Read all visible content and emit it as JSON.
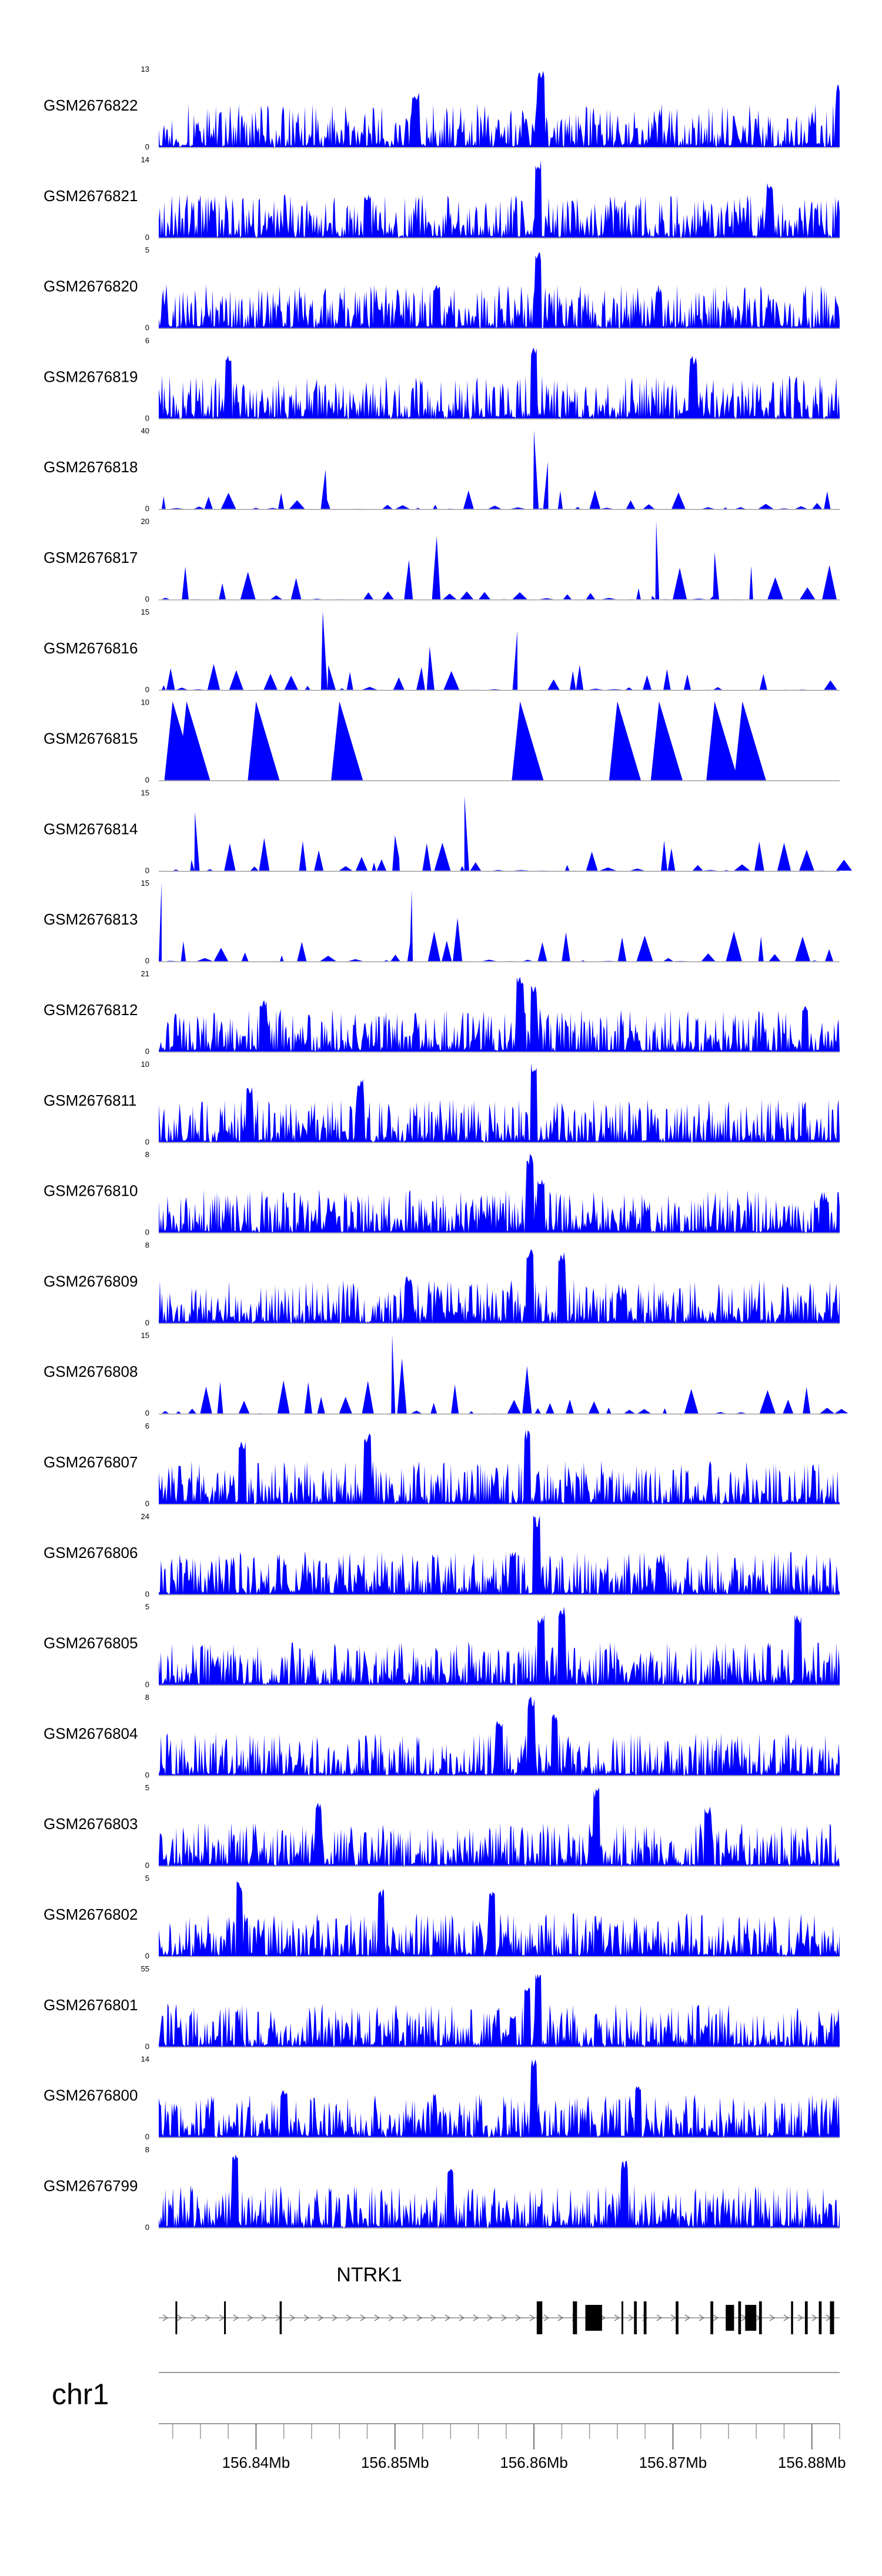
{
  "chart_data": {
    "type": "area",
    "chromosome": "chr1",
    "region": {
      "start": 156833000,
      "end": 156882000
    },
    "track_color": "#0000ff",
    "tracks": [
      {
        "name": "GSM2676822",
        "max": 13,
        "min": 0,
        "peaks": [
          [
            156851500,
            0.7
          ],
          [
            156860500,
            1.0
          ],
          [
            156882000,
            0.8
          ]
        ]
      },
      {
        "name": "GSM2676821",
        "max": 14,
        "min": 0,
        "peaks": [
          [
            156860300,
            1.0
          ],
          [
            156877000,
            0.7
          ],
          [
            156848000,
            0.55
          ]
        ]
      },
      {
        "name": "GSM2676820",
        "max": 5,
        "min": 0,
        "peaks": [
          [
            156860300,
            1.0
          ],
          [
            156853000,
            0.55
          ],
          [
            156869000,
            0.5
          ]
        ]
      },
      {
        "name": "GSM2676819",
        "max": 6,
        "min": 0,
        "peaks": [
          [
            156860000,
            0.9
          ],
          [
            156838000,
            0.8
          ],
          [
            156871500,
            0.8
          ]
        ]
      },
      {
        "name": "GSM2676818",
        "max": 40,
        "min": 0,
        "peaks": [
          [
            156860000,
            1.0
          ],
          [
            156845000,
            0.5
          ],
          [
            156861000,
            0.6
          ]
        ]
      },
      {
        "name": "GSM2676817",
        "max": 20,
        "min": 0,
        "peaks": [
          [
            156868800,
            1.0
          ],
          [
            156853000,
            0.8
          ],
          [
            156851000,
            0.5
          ],
          [
            156873000,
            0.6
          ]
        ]
      },
      {
        "name": "GSM2676816",
        "max": 15,
        "min": 0,
        "peaks": [
          [
            156844800,
            1.0
          ],
          [
            156858800,
            0.75
          ],
          [
            156852500,
            0.55
          ]
        ]
      },
      {
        "name": "GSM2676815",
        "max": 10,
        "min": 0,
        "peaks": [
          [
            156834000,
            1.0
          ],
          [
            156835000,
            1.0
          ],
          [
            156840000,
            1.0
          ],
          [
            156846000,
            1.0
          ],
          [
            156859000,
            1.0
          ],
          [
            156866000,
            1.0
          ],
          [
            156869000,
            1.0
          ],
          [
            156873000,
            1.0
          ],
          [
            156875000,
            1.0
          ]
        ]
      },
      {
        "name": "GSM2676814",
        "max": 15,
        "min": 0,
        "peaks": [
          [
            156835600,
            0.75
          ],
          [
            156855000,
            0.95
          ],
          [
            156850000,
            0.45
          ]
        ]
      },
      {
        "name": "GSM2676813",
        "max": 15,
        "min": 0,
        "peaks": [
          [
            156833200,
            1.0
          ],
          [
            156851200,
            0.9
          ],
          [
            156854500,
            0.55
          ]
        ]
      },
      {
        "name": "GSM2676812",
        "max": 21,
        "min": 0,
        "peaks": [
          [
            156859000,
            1.0
          ],
          [
            156860000,
            0.85
          ],
          [
            156840500,
            0.65
          ],
          [
            156879500,
            0.6
          ]
        ]
      },
      {
        "name": "GSM2676811",
        "max": 10,
        "min": 0,
        "peaks": [
          [
            156860000,
            1.0
          ],
          [
            156847500,
            0.8
          ],
          [
            156839500,
            0.7
          ]
        ]
      },
      {
        "name": "GSM2676810",
        "max": 8,
        "min": 0,
        "peaks": [
          [
            156859700,
            1.0
          ],
          [
            156860500,
            0.7
          ],
          [
            156881000,
            0.45
          ]
        ]
      },
      {
        "name": "GSM2676809",
        "max": 8,
        "min": 0,
        "peaks": [
          [
            156859700,
            0.95
          ],
          [
            156862000,
            0.9
          ],
          [
            156851000,
            0.6
          ]
        ]
      },
      {
        "name": "GSM2676808",
        "max": 15,
        "min": 0,
        "peaks": [
          [
            156849800,
            1.0
          ],
          [
            156850500,
            0.7
          ],
          [
            156859500,
            0.6
          ]
        ]
      },
      {
        "name": "GSM2676807",
        "max": 6,
        "min": 0,
        "peaks": [
          [
            156859500,
            0.95
          ],
          [
            156848000,
            0.9
          ],
          [
            156839000,
            0.8
          ]
        ]
      },
      {
        "name": "GSM2676806",
        "max": 24,
        "min": 0,
        "peaks": [
          [
            156860200,
            1.0
          ],
          [
            156858500,
            0.55
          ],
          [
            156869000,
            0.45
          ]
        ]
      },
      {
        "name": "GSM2676805",
        "max": 5,
        "min": 0,
        "peaks": [
          [
            156862000,
            1.0
          ],
          [
            156860500,
            0.9
          ],
          [
            156879000,
            0.9
          ]
        ]
      },
      {
        "name": "GSM2676804",
        "max": 8,
        "min": 0,
        "peaks": [
          [
            156859800,
            1.0
          ],
          [
            156861500,
            0.8
          ],
          [
            156857500,
            0.7
          ]
        ]
      },
      {
        "name": "GSM2676803",
        "max": 5,
        "min": 0,
        "peaks": [
          [
            156864500,
            1.0
          ],
          [
            156844500,
            0.8
          ],
          [
            156872500,
            0.75
          ]
        ]
      },
      {
        "name": "GSM2676802",
        "max": 5,
        "min": 0,
        "peaks": [
          [
            156838800,
            0.95
          ],
          [
            156849000,
            0.85
          ],
          [
            156857000,
            0.85
          ]
        ]
      },
      {
        "name": "GSM2676801",
        "max": 55,
        "min": 0,
        "peaks": [
          [
            156860300,
            1.0
          ],
          [
            156859500,
            0.75
          ],
          [
            156858500,
            0.4
          ]
        ]
      },
      {
        "name": "GSM2676800",
        "max": 14,
        "min": 0,
        "peaks": [
          [
            156860000,
            1.0
          ],
          [
            156867500,
            0.7
          ],
          [
            156842000,
            0.6
          ]
        ]
      },
      {
        "name": "GSM2676799",
        "max": 8,
        "min": 0,
        "peaks": [
          [
            156838500,
            1.0
          ],
          [
            156866500,
            0.85
          ],
          [
            156854000,
            0.75
          ]
        ]
      }
    ],
    "gene": {
      "name": "NTRK1",
      "strand": "+",
      "line_start": 156833000,
      "line_end": 156882000,
      "exons": [
        [
          156834200,
          156834300
        ],
        [
          156837700,
          156837800
        ],
        [
          156841700,
          156841850
        ],
        [
          156860200,
          156860600
        ],
        [
          156862800,
          156863100
        ],
        [
          156863700,
          156864900
        ],
        [
          156866300,
          156866400
        ],
        [
          156867200,
          156867400
        ],
        [
          156867900,
          156868100
        ],
        [
          156870200,
          156870400
        ],
        [
          156872700,
          156872900
        ],
        [
          156873800,
          156874400
        ],
        [
          156874700,
          156874900
        ],
        [
          156875200,
          156876000
        ],
        [
          156876200,
          156876400
        ],
        [
          156878500,
          156878650
        ],
        [
          156879500,
          156879700
        ],
        [
          156880500,
          156880700
        ],
        [
          156881300,
          156881600
        ]
      ]
    },
    "axis": {
      "tick_labels": [
        "156.84Mb",
        "156.85Mb",
        "156.86Mb",
        "156.87Mb",
        "156.88Mb"
      ],
      "major_ticks": [
        156840000,
        156850000,
        156860000,
        156870000,
        156880000
      ],
      "minor_tick_step": 2000
    }
  }
}
